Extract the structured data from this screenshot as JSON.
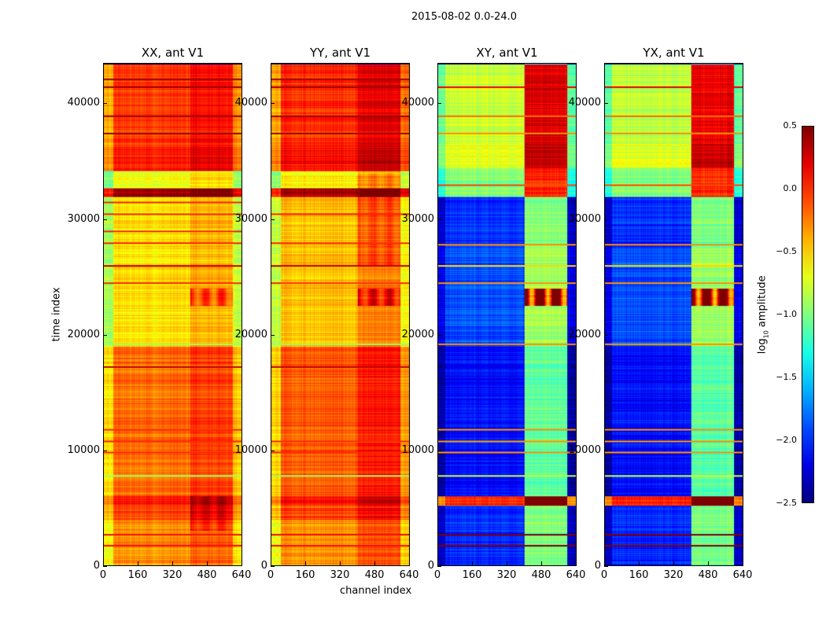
{
  "chart_data": {
    "type": "heatmap",
    "title": "2015-08-02 0.0-24.0",
    "xlabel": "channel index",
    "ylabel": "time index",
    "xlim": [
      0,
      640
    ],
    "ylim": [
      0,
      43500
    ],
    "xticks": [
      "0",
      "160",
      "320",
      "480",
      "640"
    ],
    "yticks": [
      "0",
      "10000",
      "20000",
      "30000",
      "40000"
    ],
    "colorbar": {
      "label": "log10 amplitude",
      "label_main": "log",
      "label_sub": "10",
      "label_tail": " amplitude",
      "range": [
        -2.5,
        0.5
      ],
      "ticks": [
        "0.5",
        "0.0",
        "−0.5",
        "−1.0",
        "−1.5",
        "−2.0",
        "−2.5"
      ],
      "colormap": "jet"
    },
    "panels": [
      {
        "title": "XX, ant V1",
        "time_segments": [
          [
            0,
            4000,
            -0.3
          ],
          [
            4000,
            5200,
            -0.1
          ],
          [
            5200,
            6000,
            0.05
          ],
          [
            6000,
            19000,
            -0.2
          ],
          [
            19000,
            32000,
            -0.55
          ],
          [
            32000,
            32700,
            0.4
          ],
          [
            32700,
            34200,
            -0.7
          ],
          [
            34200,
            36500,
            0.05
          ],
          [
            36500,
            43500,
            -0.05
          ]
        ],
        "channel_offsets": [
          [
            0,
            40,
            -0.35
          ],
          [
            40,
            400,
            0
          ],
          [
            400,
            600,
            0.15
          ],
          [
            600,
            640,
            -0.25
          ]
        ],
        "hotspots": [
          [
            400,
            600,
            22500,
            24000,
            0.5
          ],
          [
            400,
            600,
            3000,
            6000,
            0.25
          ]
        ],
        "stripes": [
          [
            1700,
            0.1
          ],
          [
            2700,
            0.1
          ],
          [
            7800,
            -0.9
          ],
          [
            9800,
            0.0
          ],
          [
            10800,
            0.0
          ],
          [
            11800,
            0.0
          ],
          [
            17200,
            0.3
          ],
          [
            19200,
            -0.9
          ],
          [
            24500,
            0.0
          ],
          [
            26000,
            0.3
          ],
          [
            28000,
            0.0
          ],
          [
            29000,
            0.0
          ],
          [
            30500,
            0.0
          ],
          [
            31500,
            0.0
          ],
          [
            37500,
            0.4
          ],
          [
            39000,
            0.4
          ],
          [
            41500,
            0.4
          ],
          [
            42200,
            0.4
          ]
        ]
      },
      {
        "title": "YY, ant V1",
        "time_segments": [
          [
            0,
            4000,
            -0.3
          ],
          [
            4000,
            5200,
            -0.1
          ],
          [
            5200,
            6000,
            0.05
          ],
          [
            6000,
            19000,
            -0.15
          ],
          [
            19000,
            32000,
            -0.45
          ],
          [
            32000,
            32700,
            0.4
          ],
          [
            32700,
            34200,
            -0.6
          ],
          [
            34200,
            36500,
            0.1
          ],
          [
            36500,
            43500,
            0.0
          ]
        ],
        "channel_offsets": [
          [
            0,
            40,
            -0.35
          ],
          [
            40,
            400,
            0
          ],
          [
            400,
            600,
            0.2
          ],
          [
            600,
            640,
            -0.2
          ]
        ],
        "hotspots": [
          [
            400,
            600,
            22500,
            24000,
            0.55
          ],
          [
            400,
            600,
            26000,
            34000,
            0.2
          ]
        ],
        "stripes": [
          [
            1700,
            0.1
          ],
          [
            2700,
            0.1
          ],
          [
            7800,
            -0.9
          ],
          [
            9800,
            0.0
          ],
          [
            10800,
            0.0
          ],
          [
            17200,
            0.3
          ],
          [
            19200,
            -0.9
          ],
          [
            24500,
            0.0
          ],
          [
            26000,
            0.3
          ],
          [
            28000,
            0.0
          ],
          [
            30500,
            0.0
          ],
          [
            37500,
            0.4
          ],
          [
            39000,
            0.4
          ],
          [
            41500,
            0.4
          ],
          [
            42200,
            0.4
          ]
        ]
      },
      {
        "title": "XY, ant V1",
        "time_segments": [
          [
            0,
            5200,
            -2.0
          ],
          [
            5200,
            6000,
            0.0
          ],
          [
            6000,
            19000,
            -2.1
          ],
          [
            19000,
            27500,
            -1.9
          ],
          [
            27500,
            32000,
            -2.0
          ],
          [
            32000,
            34500,
            -1.0
          ],
          [
            34500,
            36500,
            -0.7
          ],
          [
            36500,
            43500,
            -0.8
          ]
        ],
        "channel_offsets": [
          [
            0,
            30,
            -0.3
          ],
          [
            30,
            400,
            0
          ],
          [
            400,
            600,
            1.0
          ],
          [
            600,
            640,
            -0.3
          ]
        ],
        "hotspots": [
          [
            400,
            600,
            22500,
            24000,
            2.2
          ]
        ],
        "stripes": [
          [
            1700,
            1.0
          ],
          [
            2700,
            1.0
          ],
          [
            7800,
            -0.8
          ],
          [
            9800,
            -0.3
          ],
          [
            10800,
            -0.3
          ],
          [
            11800,
            -0.3
          ],
          [
            19200,
            -0.3
          ],
          [
            24500,
            -0.3
          ],
          [
            26000,
            -0.5
          ],
          [
            27800,
            -0.3
          ],
          [
            33000,
            -0.1
          ],
          [
            37500,
            -0.3
          ],
          [
            39000,
            -0.2
          ],
          [
            41500,
            0.2
          ]
        ]
      },
      {
        "title": "YX, ant V1",
        "time_segments": [
          [
            0,
            5200,
            -2.0
          ],
          [
            5200,
            6000,
            0.0
          ],
          [
            6000,
            19000,
            -2.1
          ],
          [
            19000,
            27500,
            -1.9
          ],
          [
            27500,
            32000,
            -2.0
          ],
          [
            32000,
            34500,
            -1.0
          ],
          [
            34500,
            36500,
            -0.7
          ],
          [
            36500,
            43500,
            -0.8
          ]
        ],
        "channel_offsets": [
          [
            0,
            30,
            -0.3
          ],
          [
            30,
            400,
            0
          ],
          [
            400,
            600,
            1.0
          ],
          [
            600,
            640,
            -0.3
          ]
        ],
        "hotspots": [
          [
            400,
            600,
            22500,
            24000,
            2.2
          ]
        ],
        "stripes": [
          [
            1700,
            1.0
          ],
          [
            2700,
            1.0
          ],
          [
            7800,
            -0.8
          ],
          [
            9800,
            -0.3
          ],
          [
            10800,
            -0.3
          ],
          [
            11800,
            -0.3
          ],
          [
            19200,
            -0.3
          ],
          [
            24500,
            -0.3
          ],
          [
            26000,
            -0.5
          ],
          [
            27800,
            -0.3
          ],
          [
            33000,
            -0.1
          ],
          [
            37500,
            -0.3
          ],
          [
            39000,
            -0.2
          ],
          [
            41500,
            0.2
          ]
        ]
      }
    ]
  }
}
